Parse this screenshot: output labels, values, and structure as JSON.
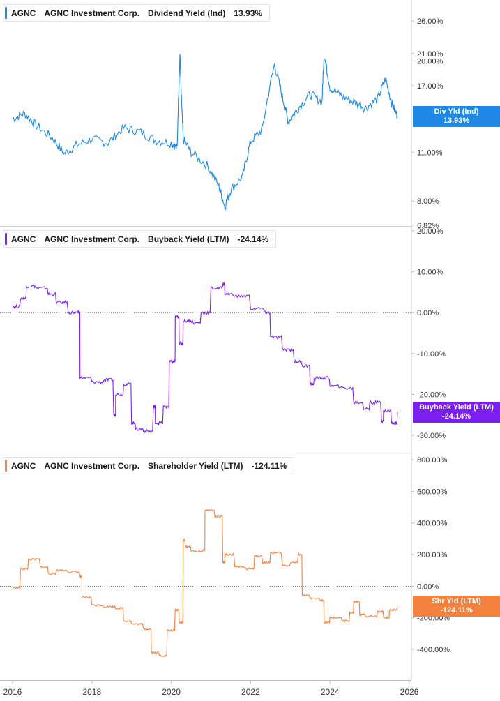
{
  "colors": {
    "dividend": "#1f88e5",
    "buyback": "#7b1ff0",
    "shareholder": "#f5813f"
  },
  "x_axis": {
    "ticks": [
      "2016",
      "2018",
      "2020",
      "2022",
      "2024",
      "2026"
    ]
  },
  "panels": [
    {
      "ticker": "AGNC",
      "company": "AGNC Investment Corp.",
      "metric": "Dividend Yield (Ind)",
      "value": "13.93%",
      "tag_line1": "Div Yld (Ind)",
      "tag_line2": "13.93%"
    },
    {
      "ticker": "AGNC",
      "company": "AGNC Investment Corp.",
      "metric": "Buyback Yield (LTM)",
      "value": "-24.14%",
      "tag_line1": "Buyback Yield (LTM)",
      "tag_line2": "-24.14%"
    },
    {
      "ticker": "AGNC",
      "company": "AGNC Investment Corp.",
      "metric": "Shareholder Yield (LTM)",
      "value": "-124.11%",
      "tag_line1": "Shr Yld (LTM)",
      "tag_line2": "-124.11%"
    }
  ],
  "chart_data": [
    {
      "type": "line",
      "ylabel": "",
      "y_scale": "log",
      "y_ticks": [
        "26.00%",
        "21.00%",
        "20.00%",
        "17.00%",
        "11.00%",
        "8.00%",
        "6.82%"
      ],
      "ylim": [
        6.82,
        30
      ],
      "series": [
        {
          "name": "Dividend Yield (Ind)",
          "x": [
            2016.0,
            2016.3,
            2016.6,
            2017.0,
            2017.3,
            2017.6,
            2018.0,
            2018.4,
            2018.8,
            2019.2,
            2019.6,
            2020.0,
            2020.15,
            2020.22,
            2020.25,
            2020.3,
            2020.5,
            2020.9,
            2021.2,
            2021.35,
            2021.5,
            2021.8,
            2022.0,
            2022.3,
            2022.6,
            2022.8,
            2022.95,
            2023.2,
            2023.5,
            2023.8,
            2023.85,
            2024.0,
            2024.3,
            2024.6,
            2024.9,
            2025.2,
            2025.4,
            2025.55,
            2025.7
          ],
          "y": [
            13.7,
            14.2,
            13.1,
            12.1,
            10.9,
            11.5,
            12.0,
            11.7,
            12.9,
            12.6,
            11.9,
            11.7,
            11.3,
            21.0,
            16.0,
            12.0,
            11.0,
            10.1,
            8.8,
            7.7,
            8.6,
            9.4,
            11.8,
            12.8,
            19.5,
            15.8,
            13.4,
            14.7,
            16.1,
            15.3,
            20.8,
            16.8,
            15.9,
            15.3,
            14.7,
            15.6,
            17.8,
            15.2,
            13.93
          ]
        }
      ]
    },
    {
      "type": "line",
      "ylabel": "",
      "y_ticks": [
        "20.00%",
        "10.00%",
        "0.00%",
        "-10.00%",
        "-20.00%",
        "-30.00%"
      ],
      "ylim": [
        -33,
        20
      ],
      "series": [
        {
          "name": "Buyback Yield (LTM)",
          "x": [
            2016.0,
            2016.2,
            2016.35,
            2016.6,
            2016.9,
            2017.1,
            2017.4,
            2017.65,
            2017.7,
            2018.0,
            2018.3,
            2018.55,
            2018.6,
            2018.8,
            2019.0,
            2019.1,
            2019.3,
            2019.55,
            2019.6,
            2019.8,
            2019.95,
            2020.05,
            2020.1,
            2020.2,
            2020.3,
            2020.55,
            2020.75,
            2021.0,
            2021.3,
            2021.35,
            2021.6,
            2022.0,
            2022.35,
            2022.5,
            2022.8,
            2023.1,
            2023.3,
            2023.5,
            2023.6,
            2023.8,
            2024.0,
            2024.3,
            2024.6,
            2024.85,
            2025.0,
            2025.3,
            2025.35,
            2025.55,
            2025.7
          ],
          "y": [
            1.5,
            3.5,
            6.5,
            6.0,
            4.5,
            2.5,
            0.0,
            0.0,
            -16.0,
            -17.0,
            -16.5,
            -25.0,
            -20.0,
            -17.5,
            -27.0,
            -28.5,
            -29.0,
            -23.0,
            -27.0,
            -23.0,
            -12.0,
            -12.0,
            -1.0,
            -7.5,
            -2.0,
            -2.5,
            0.0,
            6.0,
            7.0,
            4.5,
            4.0,
            1.0,
            0.0,
            -6.0,
            -9.0,
            -12.0,
            -13.0,
            -17.5,
            -16.0,
            -16.0,
            -18.0,
            -18.5,
            -22.0,
            -23.5,
            -22.0,
            -26.5,
            -24.0,
            -27.0,
            -24.14
          ]
        }
      ]
    },
    {
      "type": "line",
      "ylabel": "",
      "y_ticks": [
        "800.00%",
        "600.00%",
        "400.00%",
        "200.00%",
        "0.00%",
        "-200.00%",
        "-400.00%"
      ],
      "ylim": [
        -500,
        800
      ],
      "series": [
        {
          "name": "Shareholder Yield (LTM)",
          "x": [
            2016.0,
            2016.2,
            2016.4,
            2016.7,
            2016.9,
            2017.1,
            2017.4,
            2017.7,
            2017.75,
            2018.0,
            2018.3,
            2018.6,
            2018.8,
            2019.0,
            2019.3,
            2019.5,
            2019.7,
            2019.9,
            2020.1,
            2020.2,
            2020.3,
            2020.35,
            2020.5,
            2020.8,
            2020.85,
            2021.1,
            2021.3,
            2021.35,
            2021.6,
            2021.9,
            2022.1,
            2022.3,
            2022.5,
            2022.8,
            2023.0,
            2023.2,
            2023.3,
            2023.5,
            2023.75,
            2023.85,
            2024.0,
            2024.3,
            2024.5,
            2024.6,
            2024.75,
            2024.9,
            2025.2,
            2025.35,
            2025.5,
            2025.7
          ],
          "y": [
            -10.0,
            110.0,
            170.0,
            120.0,
            80.0,
            100.0,
            90.0,
            60.0,
            -70.0,
            -120.0,
            -130.0,
            -140.0,
            -220.0,
            -240.0,
            -270.0,
            -420.0,
            -440.0,
            -280.0,
            -150.0,
            -230.0,
            290.0,
            250.0,
            220.0,
            230.0,
            480.0,
            440.0,
            150.0,
            200.0,
            120.0,
            110.0,
            190.0,
            150.0,
            210.0,
            130.0,
            150.0,
            200.0,
            -60.0,
            -80.0,
            -90.0,
            -230.0,
            -200.0,
            -220.0,
            -170.0,
            -100.0,
            -180.0,
            -190.0,
            -160.0,
            -200.0,
            -150.0,
            -124.11
          ]
        }
      ]
    }
  ]
}
